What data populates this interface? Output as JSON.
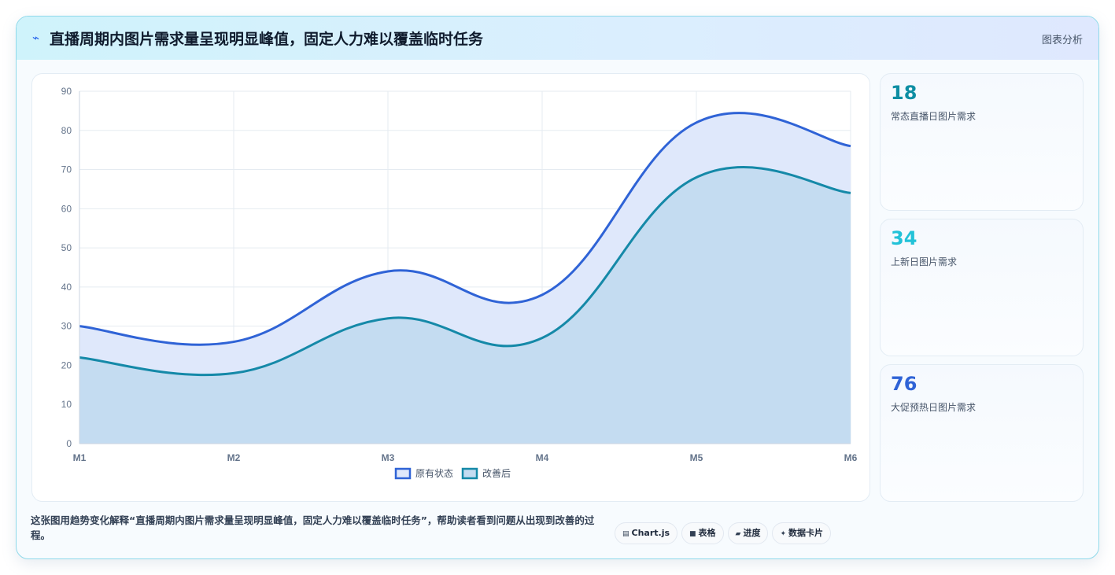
{
  "header": {
    "title": "直播周期内图片需求量呈现明显峰值，固定人力难以覆盖临时任务",
    "tag": "图表分析"
  },
  "stats": [
    {
      "value": "18",
      "label": "常态直播日图片需求",
      "color": "#0e8ea3"
    },
    {
      "value": "34",
      "label": "上新日图片需求",
      "color": "#22c2d8"
    },
    {
      "value": "76",
      "label": "大促预热日图片需求",
      "color": "#2f63d6"
    }
  ],
  "footer": {
    "text": "这张图用趋势变化解释“直播周期内图片需求量呈现明显峰值，固定人力难以覆盖临时任务”，帮助读者看到问题从出现到改善的过程。",
    "chips": [
      {
        "icon": "▤",
        "label": "Chart.js"
      },
      {
        "icon": "■",
        "label": "表格"
      },
      {
        "icon": "▰",
        "label": "进度"
      },
      {
        "icon": "✦",
        "label": "数据卡片"
      }
    ]
  },
  "chart_data": {
    "type": "area",
    "categories": [
      "M1",
      "M2",
      "M3",
      "M4",
      "M5",
      "M6"
    ],
    "ylim": [
      0,
      90
    ],
    "yticks": [
      0,
      10,
      20,
      30,
      40,
      50,
      60,
      70,
      80,
      90
    ],
    "grid": true,
    "legend_position": "bottom",
    "series": [
      {
        "name": "原有状态",
        "values": [
          30,
          26,
          44,
          38,
          82,
          76
        ],
        "color": "#2f63d6",
        "fill": "#dfe8fb"
      },
      {
        "name": "改善后",
        "values": [
          22,
          18,
          32,
          27,
          68,
          64
        ],
        "color": "#1589a8",
        "fill": "#c4dcf1"
      }
    ]
  }
}
